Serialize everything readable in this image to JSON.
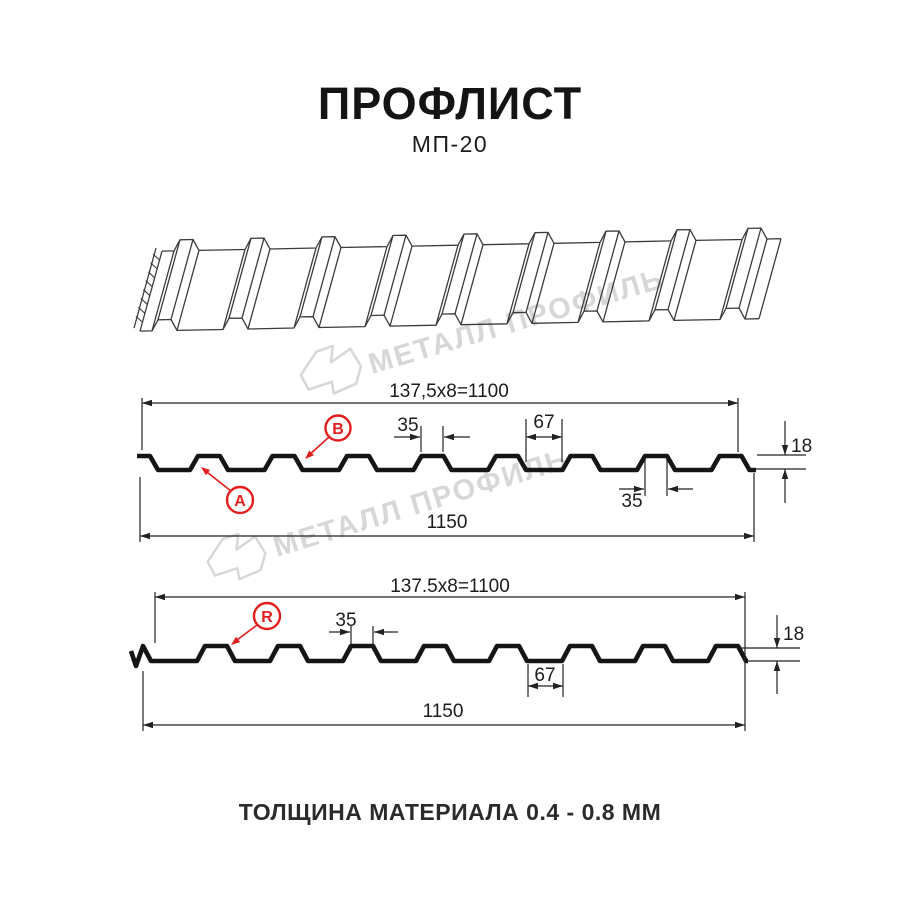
{
  "title": {
    "main": "ПРОФЛИСТ",
    "model": "МП-20"
  },
  "watermark": {
    "text": "МЕТАЛЛ ПРОФИЛЬ"
  },
  "diagram1": {
    "total_width": "137,5x8=1100",
    "rib_top_width": "35",
    "flat_width": "67",
    "profile_height": "18",
    "rib_top_width_lower": "35",
    "overall_width": "1150",
    "marker_a": "A",
    "marker_b": "B"
  },
  "diagram2": {
    "total_width": "137.5x8=1100",
    "rib_top_width": "35",
    "flat_width": "67",
    "profile_height": "18",
    "overall_width": "1150",
    "marker_r": "R"
  },
  "footer": {
    "material_note": "ТОЛЩИНА МАТЕРИАЛА 0.4 - 0.8 ММ"
  },
  "colors": {
    "accent_red": "#e11d1d",
    "line": "#222222",
    "profile": "#151515",
    "watermark": "#d7d7d7",
    "drawing": "#3b3b3b",
    "background": "#ffffff"
  }
}
